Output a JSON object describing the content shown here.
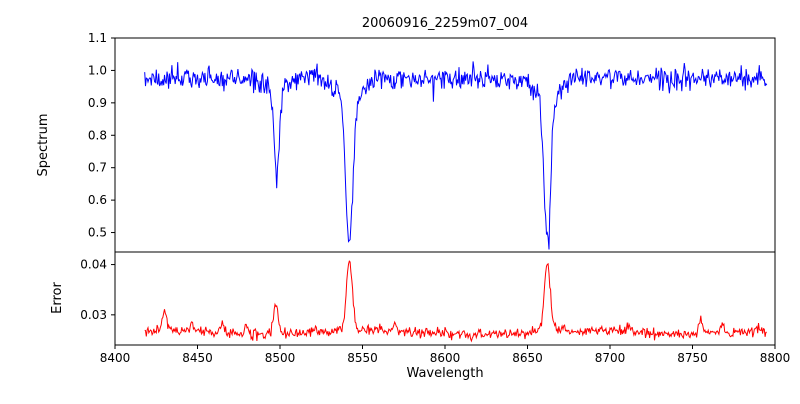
{
  "figure": {
    "background_color": "#ffffff",
    "axes_color": "#000000"
  },
  "chart_data": {
    "type": "line",
    "title": "20060916_2259m07_004",
    "xlabel": "Wavelength",
    "xlim": [
      8400,
      8800
    ],
    "x_ticks": [
      "8400",
      "8450",
      "8500",
      "8550",
      "8600",
      "8650",
      "8700",
      "8750",
      "8800"
    ],
    "x_range_data": [
      8418,
      8795
    ],
    "grid": false,
    "legend": "none",
    "subplots": [
      {
        "ylabel": "Spectrum",
        "ylim": [
          0.44,
          1.1
        ],
        "y_ticks": [
          "0.5",
          "0.6",
          "0.7",
          "0.8",
          "0.9",
          "1.0",
          "1.1"
        ],
        "series": [
          {
            "name": "spectrum",
            "color": "#0000ff",
            "continuum": 0.975,
            "noise_sigma": 0.017,
            "absorption_lines": [
              {
                "center": 8498,
                "depth": 0.27,
                "width": 1.6,
                "min_value": 0.67
              },
              {
                "center": 8542,
                "depth": 0.46,
                "width": 2.2,
                "min_value": 0.46
              },
              {
                "center": 8662,
                "depth": 0.45,
                "width": 2.0,
                "min_value": 0.47
              }
            ]
          }
        ]
      },
      {
        "ylabel": "Error",
        "ylim": [
          0.024,
          0.0425
        ],
        "y_ticks": [
          "0.03",
          "0.04"
        ],
        "series": [
          {
            "name": "error",
            "color": "#ff0000",
            "baseline": 0.0265,
            "noise_sigma": 0.0005,
            "peaks": [
              {
                "center": 8430,
                "amp": 0.0045,
                "width": 1.2
              },
              {
                "center": 8447,
                "amp": 0.0012,
                "width": 1.0
              },
              {
                "center": 8465,
                "amp": 0.002,
                "width": 1.2
              },
              {
                "center": 8480,
                "amp": 0.0012,
                "width": 1.0
              },
              {
                "center": 8497.5,
                "amp": 0.006,
                "width": 1.5
              },
              {
                "center": 8542,
                "amp": 0.0138,
                "width": 1.8
              },
              {
                "center": 8570,
                "amp": 0.0012,
                "width": 1.2
              },
              {
                "center": 8662,
                "amp": 0.0138,
                "width": 1.8
              },
              {
                "center": 8712,
                "amp": 0.001,
                "width": 1.0
              },
              {
                "center": 8755,
                "amp": 0.0028,
                "width": 1.2
              },
              {
                "center": 8768,
                "amp": 0.0022,
                "width": 1.0
              }
            ]
          }
        ]
      }
    ]
  }
}
